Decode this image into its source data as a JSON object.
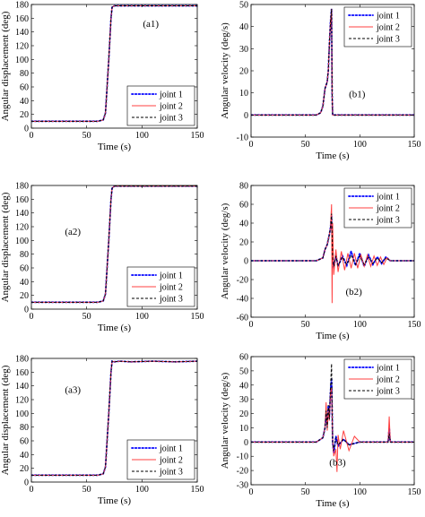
{
  "chart_data": [
    {
      "id": "a1",
      "type": "line",
      "panel_label": "(a1)",
      "xlabel": "Time (s)",
      "ylabel": "Angular displacement (deg)",
      "xlim": [
        0,
        150
      ],
      "ylim": [
        0,
        180
      ],
      "xticks": [
        0,
        50,
        100,
        150
      ],
      "yticks": [
        0,
        20,
        40,
        60,
        80,
        100,
        120,
        140,
        160,
        180
      ],
      "legend": "bottom-right",
      "series": [
        {
          "name": "joint 1",
          "color": "#0000ff",
          "style": "dotted",
          "x": [
            0,
            60,
            65,
            67,
            70,
            72,
            73,
            75,
            150
          ],
          "y": [
            10,
            10,
            12,
            22,
            100,
            160,
            176,
            178,
            178
          ]
        },
        {
          "name": "joint 2",
          "color": "#ff4040",
          "style": "solid",
          "x": [
            0,
            60,
            65,
            67,
            70,
            72,
            73,
            75,
            150
          ],
          "y": [
            10,
            10,
            12,
            22,
            100,
            160,
            176,
            178,
            178
          ]
        },
        {
          "name": "joint 3",
          "color": "#000000",
          "style": "dashed",
          "x": [
            0,
            60,
            65,
            67,
            70,
            72,
            73,
            75,
            150
          ],
          "y": [
            10,
            10,
            12,
            22,
            100,
            160,
            176,
            178,
            178
          ]
        }
      ]
    },
    {
      "id": "b1",
      "type": "line",
      "panel_label": "(b1)",
      "xlabel": "Time (s)",
      "ylabel": "Angular velocity (deg/s)",
      "xlim": [
        0,
        150
      ],
      "ylim": [
        -10,
        50
      ],
      "xticks": [
        0,
        50,
        100,
        150
      ],
      "yticks": [
        -10,
        0,
        10,
        20,
        30,
        40,
        50
      ],
      "legend": "top-right",
      "series": [
        {
          "name": "joint 1",
          "color": "#0000ff",
          "style": "dotted",
          "x": [
            0,
            60,
            64,
            66,
            68,
            70,
            71,
            72,
            73,
            74,
            74.5,
            75,
            150
          ],
          "y": [
            0,
            0,
            1,
            4,
            12,
            15,
            20,
            32,
            42,
            48,
            10,
            0,
            0
          ]
        },
        {
          "name": "joint 2",
          "color": "#ff4040",
          "style": "solid",
          "x": [
            0,
            60,
            64,
            66,
            68,
            70,
            71,
            72,
            73,
            74,
            74.5,
            75,
            150
          ],
          "y": [
            0,
            0,
            1,
            4,
            12,
            15,
            20,
            32,
            42,
            48,
            10,
            0,
            0
          ]
        },
        {
          "name": "joint 3",
          "color": "#000000",
          "style": "dashed",
          "x": [
            0,
            60,
            64,
            66,
            68,
            70,
            71,
            72,
            73,
            74,
            74.5,
            75,
            150
          ],
          "y": [
            0,
            0,
            1,
            4,
            12,
            15,
            20,
            32,
            42,
            48,
            10,
            0,
            0
          ]
        }
      ]
    },
    {
      "id": "a2",
      "type": "line",
      "panel_label": "(a2)",
      "xlabel": "Time (s)",
      "ylabel": "Angular displacement (deg)",
      "xlim": [
        0,
        150
      ],
      "ylim": [
        0,
        180
      ],
      "xticks": [
        0,
        50,
        100,
        150
      ],
      "yticks": [
        0,
        20,
        40,
        60,
        80,
        100,
        120,
        140,
        160,
        180
      ],
      "legend": "bottom-right",
      "series": [
        {
          "name": "joint 1",
          "color": "#0000ff",
          "style": "dotted",
          "x": [
            0,
            60,
            65,
            67,
            70,
            72,
            73,
            75,
            150
          ],
          "y": [
            10,
            10,
            12,
            22,
            100,
            160,
            176,
            179,
            179
          ]
        },
        {
          "name": "joint 2",
          "color": "#ff4040",
          "style": "solid",
          "x": [
            0,
            60,
            65,
            67,
            70,
            72,
            73,
            75,
            150
          ],
          "y": [
            10,
            10,
            12,
            22,
            100,
            160,
            176,
            179,
            179
          ]
        },
        {
          "name": "joint 3",
          "color": "#000000",
          "style": "dashed",
          "x": [
            0,
            60,
            65,
            67,
            70,
            72,
            73,
            75,
            150
          ],
          "y": [
            10,
            10,
            12,
            22,
            100,
            160,
            176,
            179,
            179
          ]
        }
      ]
    },
    {
      "id": "b2",
      "type": "line",
      "panel_label": "(b2)",
      "xlabel": "Time (s)",
      "ylabel": "Angular velocity (deg/s)",
      "xlim": [
        0,
        150
      ],
      "ylim": [
        -60,
        80
      ],
      "xticks": [
        0,
        50,
        100,
        150
      ],
      "yticks": [
        -60,
        -40,
        -20,
        0,
        20,
        40,
        60,
        80
      ],
      "legend": "top-right",
      "series": [
        {
          "name": "joint 1",
          "color": "#0000ff",
          "style": "dotted",
          "x": [
            0,
            60,
            66,
            68,
            70,
            72,
            73,
            74,
            75,
            76,
            78,
            80,
            84,
            88,
            92,
            96,
            100,
            104,
            108,
            112,
            116,
            120,
            124,
            128,
            150
          ],
          "y": [
            0,
            0,
            3,
            12,
            17,
            28,
            35,
            48,
            5,
            -8,
            6,
            -6,
            5,
            -5,
            10,
            -5,
            8,
            -6,
            6,
            -4,
            4,
            -3,
            4,
            0,
            0
          ]
        },
        {
          "name": "joint 2",
          "color": "#ff4040",
          "style": "solid",
          "x": [
            0,
            60,
            66,
            68,
            70,
            72,
            73,
            74,
            74.5,
            75,
            76,
            78,
            80,
            83,
            86,
            89,
            92,
            95,
            98,
            101,
            104,
            107,
            110,
            113,
            116,
            119,
            122,
            125,
            128,
            150
          ],
          "y": [
            0,
            0,
            3,
            12,
            17,
            28,
            35,
            60,
            -45,
            40,
            -15,
            12,
            -12,
            10,
            -10,
            8,
            -8,
            8,
            -8,
            6,
            -6,
            6,
            -6,
            5,
            -5,
            4,
            -4,
            3,
            0,
            0
          ]
        },
        {
          "name": "joint 3",
          "color": "#000000",
          "style": "dashed",
          "x": [
            0,
            60,
            66,
            68,
            70,
            72,
            73,
            74,
            75,
            76,
            78,
            80,
            84,
            88,
            92,
            96,
            100,
            104,
            108,
            112,
            116,
            120,
            124,
            128,
            150
          ],
          "y": [
            0,
            0,
            3,
            12,
            17,
            28,
            35,
            50,
            4,
            -6,
            5,
            -5,
            4,
            -4,
            6,
            -4,
            5,
            -4,
            4,
            -3,
            3,
            -2,
            3,
            0,
            0
          ]
        }
      ]
    },
    {
      "id": "a3",
      "type": "line",
      "panel_label": "(a3)",
      "xlabel": "Time (s)",
      "ylabel": "Angular displacement (deg)",
      "xlim": [
        0,
        150
      ],
      "ylim": [
        0,
        180
      ],
      "xticks": [
        0,
        50,
        100,
        150
      ],
      "yticks": [
        0,
        20,
        40,
        60,
        80,
        100,
        120,
        140,
        160,
        180
      ],
      "legend": "bottom-right",
      "series": [
        {
          "name": "joint 1",
          "color": "#0000ff",
          "style": "dotted",
          "x": [
            0,
            60,
            65,
            67,
            70,
            72,
            73,
            75,
            80,
            90,
            110,
            130,
            150
          ],
          "y": [
            10,
            10,
            12,
            22,
            100,
            160,
            176,
            175,
            176,
            175,
            176,
            175,
            176
          ]
        },
        {
          "name": "joint 2",
          "color": "#ff4040",
          "style": "solid",
          "x": [
            0,
            60,
            65,
            67,
            70,
            72,
            73,
            75,
            80,
            90,
            110,
            130,
            150
          ],
          "y": [
            10,
            10,
            12,
            22,
            100,
            160,
            176,
            175,
            176,
            175,
            176,
            175,
            176
          ]
        },
        {
          "name": "joint 3",
          "color": "#000000",
          "style": "dashed",
          "x": [
            0,
            60,
            65,
            67,
            70,
            72,
            73,
            75,
            80,
            90,
            110,
            130,
            150
          ],
          "y": [
            10,
            10,
            12,
            22,
            100,
            160,
            176,
            175,
            176,
            175,
            176,
            175,
            176
          ]
        }
      ]
    },
    {
      "id": "b3",
      "type": "line",
      "panel_label": "(b3)",
      "xlabel": "Time (s)",
      "ylabel": "Angular velocity (deg/s)",
      "xlim": [
        0,
        150
      ],
      "ylim": [
        -30,
        60
      ],
      "xticks": [
        0,
        50,
        100,
        150
      ],
      "yticks": [
        -30,
        -20,
        -10,
        0,
        10,
        20,
        30,
        40,
        50,
        60
      ],
      "legend": "top-right",
      "series": [
        {
          "name": "joint 1",
          "color": "#0000ff",
          "style": "dotted",
          "x": [
            0,
            60,
            66,
            68,
            69,
            70,
            71,
            72,
            73,
            74,
            75,
            76,
            78,
            80,
            85,
            90,
            100,
            110,
            126,
            127,
            128,
            150
          ],
          "y": [
            0,
            0,
            3,
            10,
            20,
            12,
            25,
            18,
            35,
            45,
            0,
            -8,
            4,
            -3,
            2,
            -2,
            0,
            0,
            0,
            10,
            0,
            0
          ]
        },
        {
          "name": "joint 2",
          "color": "#ff4040",
          "style": "solid",
          "x": [
            0,
            60,
            66,
            68,
            69,
            70,
            71,
            72,
            73,
            74,
            75,
            76,
            78,
            79,
            80,
            82,
            85,
            90,
            95,
            100,
            110,
            126,
            127,
            128,
            150
          ],
          "y": [
            0,
            0,
            3,
            10,
            28,
            8,
            22,
            15,
            35,
            38,
            2,
            -10,
            -5,
            -21,
            5,
            -5,
            8,
            -6,
            4,
            0,
            0,
            0,
            18,
            0,
            0
          ]
        },
        {
          "name": "joint 3",
          "color": "#000000",
          "style": "dashed",
          "x": [
            0,
            60,
            66,
            68,
            69,
            70,
            71,
            72,
            73,
            74,
            75,
            76,
            78,
            80,
            85,
            90,
            100,
            110,
            126,
            127,
            128,
            150
          ],
          "y": [
            0,
            0,
            3,
            10,
            22,
            10,
            26,
            16,
            38,
            55,
            0,
            -6,
            3,
            -2,
            2,
            -2,
            0,
            0,
            0,
            6,
            0,
            0
          ]
        }
      ]
    }
  ]
}
